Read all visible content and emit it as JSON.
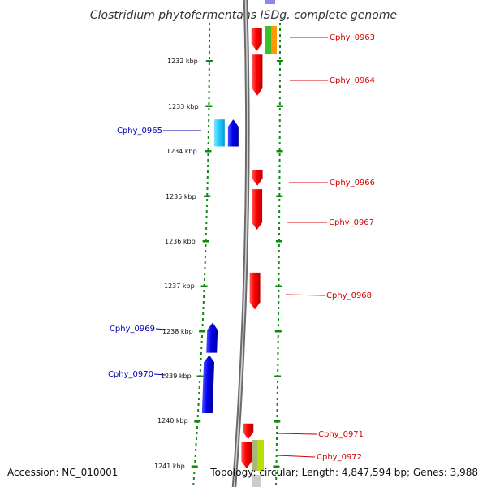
{
  "title": "Clostridium phytofermentans ISDg, complete genome",
  "footer": {
    "accession": "Accession: NC_010001",
    "summary": "Topology: circular; Length: 4,847,594 bp; Genes: 3,988"
  },
  "colors": {
    "forward_label": "#d40000",
    "reverse_label": "#0000b4",
    "backbone": "#8a8a8a",
    "tick_dots": "#118811",
    "forward_gene": "#ff0000",
    "reverse_gene": "#0000ee",
    "reverse_gene_light": "#1ec8ff",
    "feature_green": "#3bbf2b",
    "feature_orange": "#ff9900",
    "feature_lime": "#b6e000",
    "feature_olive": "#a9b878",
    "feature_purple": "#8888ee"
  },
  "scale_labels": [
    {
      "kbp": 1232,
      "label": "1232 kbp"
    },
    {
      "kbp": 1233,
      "label": "1233 kbp"
    },
    {
      "kbp": 1234,
      "label": "1234 kbp"
    },
    {
      "kbp": 1235,
      "label": "1235 kbp"
    },
    {
      "kbp": 1236,
      "label": "1236 kbp"
    },
    {
      "kbp": 1237,
      "label": "1237 kbp"
    },
    {
      "kbp": 1238,
      "label": "1238 kbp"
    },
    {
      "kbp": 1239,
      "label": "1239 kbp"
    },
    {
      "kbp": 1240,
      "label": "1240 kbp"
    },
    {
      "kbp": 1241,
      "label": "1241 kbp"
    }
  ],
  "genes": [
    {
      "name": "Cphy_0963",
      "strand": "+",
      "start_kbp": 1231.28,
      "end_kbp": 1231.78
    },
    {
      "name": "Cphy_0964",
      "strand": "+",
      "start_kbp": 1231.86,
      "end_kbp": 1232.77
    },
    {
      "name": "Cphy_0965",
      "strand": "-",
      "start_kbp": 1233.3,
      "end_kbp": 1233.9
    },
    {
      "name": "Cphy_0966",
      "strand": "+",
      "start_kbp": 1234.42,
      "end_kbp": 1234.77
    },
    {
      "name": "Cphy_0967",
      "strand": "+",
      "start_kbp": 1234.85,
      "end_kbp": 1235.75
    },
    {
      "name": "Cphy_0968",
      "strand": "+",
      "start_kbp": 1236.7,
      "end_kbp": 1237.52
    },
    {
      "name": "Cphy_0969",
      "strand": "-",
      "start_kbp": 1237.81,
      "end_kbp": 1238.48
    },
    {
      "name": "Cphy_0970",
      "strand": "-",
      "start_kbp": 1238.53,
      "end_kbp": 1239.82
    },
    {
      "name": "Cphy_0971",
      "strand": "+",
      "start_kbp": 1240.05,
      "end_kbp": 1240.4
    },
    {
      "name": "Cphy_0972",
      "strand": "+",
      "start_kbp": 1240.45,
      "end_kbp": 1241.05
    }
  ]
}
